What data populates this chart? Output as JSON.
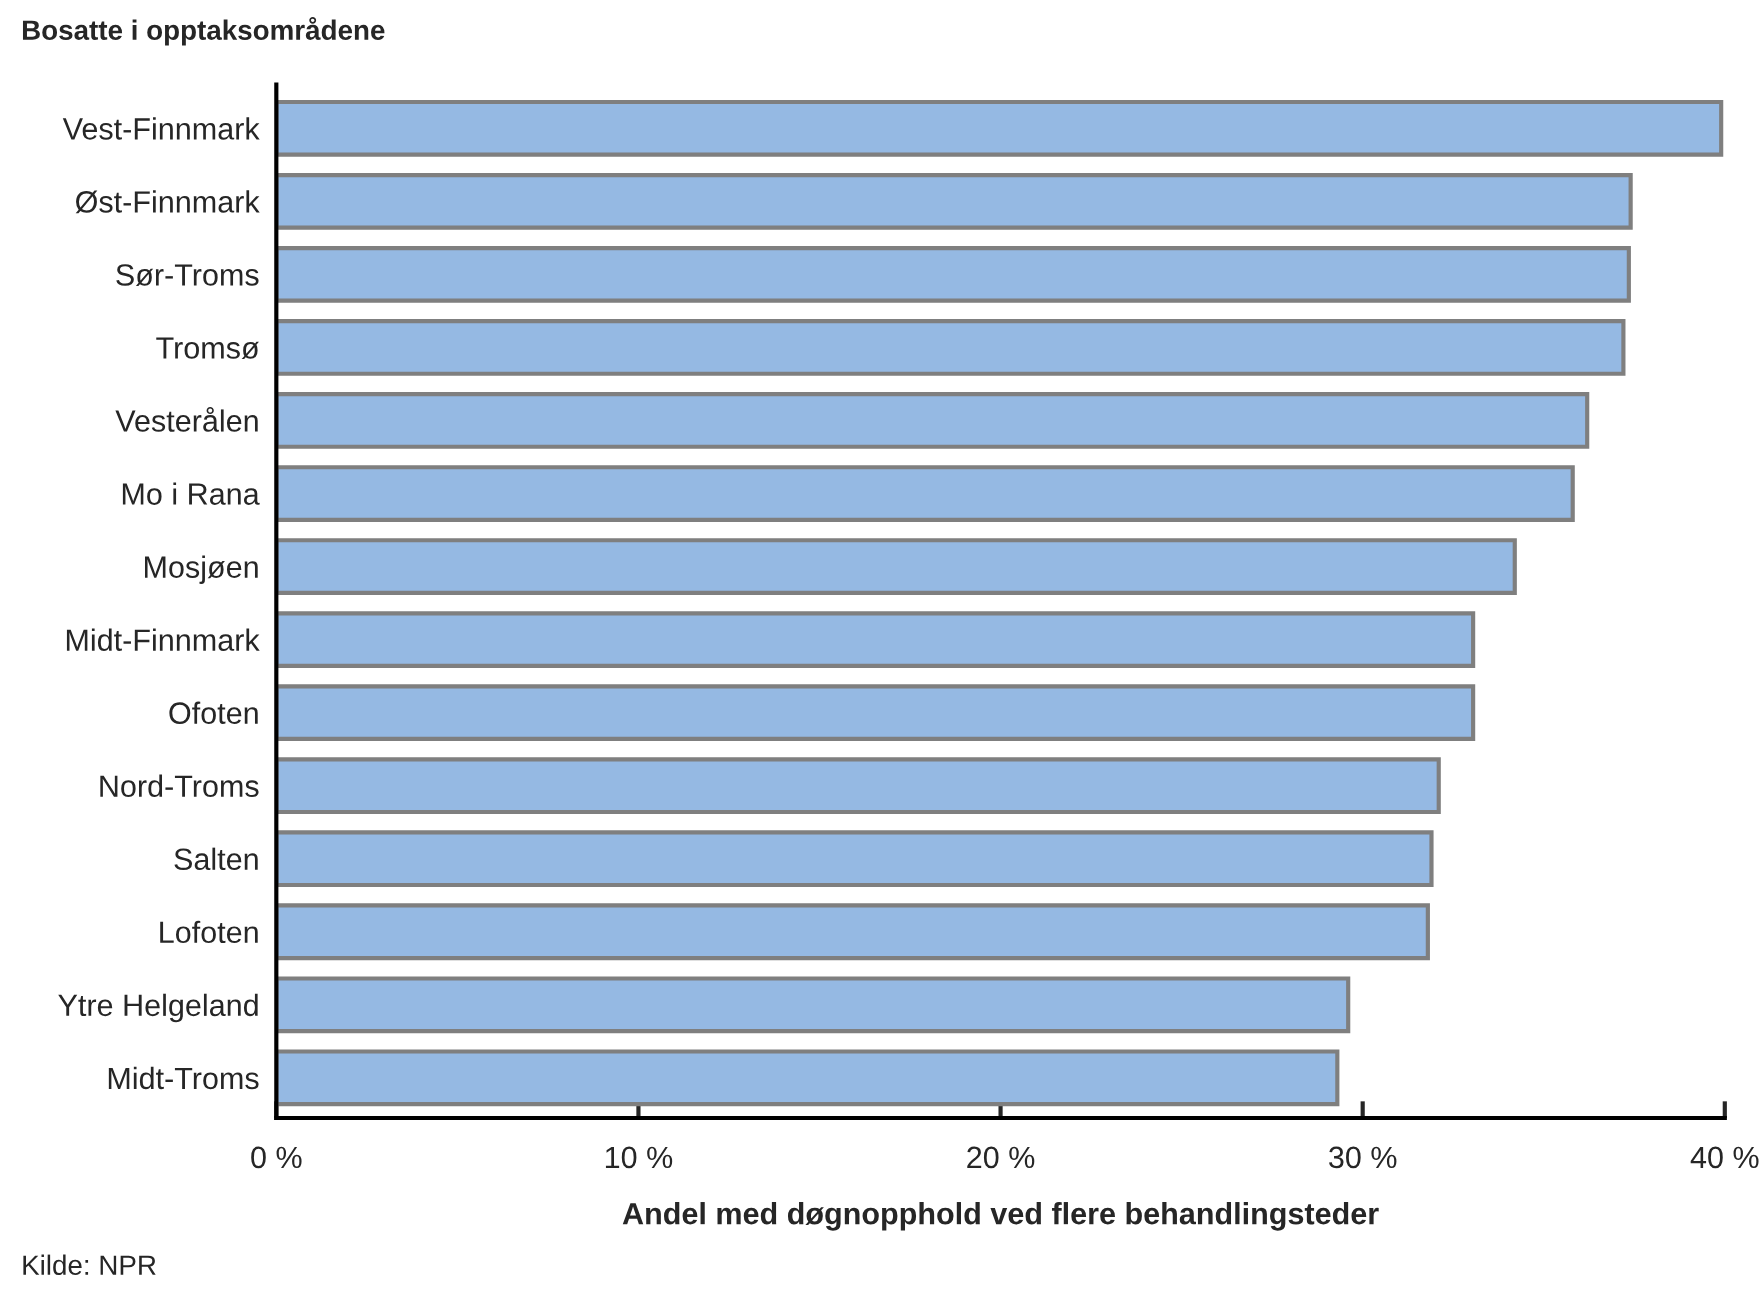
{
  "chart_data": {
    "type": "bar",
    "orientation": "horizontal",
    "ylabel": "Bosatte i opptaksområdene",
    "xlabel": "Andel med døgnopphold ved flere behandlingsteder",
    "categories": [
      "Vest-Finnmark",
      "Øst-Finnmark",
      "Sør-Troms",
      "Tromsø",
      "Vesterålen",
      "Mo i Rana",
      "Mosjøen",
      "Midt-Finnmark",
      "Ofoten",
      "Nord-Troms",
      "Salten",
      "Lofoten",
      "Ytre Helgeland",
      "Midt-Troms"
    ],
    "values": [
      39.9,
      37.4,
      37.35,
      37.2,
      36.2,
      35.8,
      34.2,
      33.05,
      33.05,
      32.1,
      31.9,
      31.8,
      29.6,
      29.3
    ],
    "color": "#95b9e3",
    "xlim": [
      0,
      40
    ],
    "xticks": [
      {
        "value": 0,
        "label": "0 %"
      },
      {
        "value": 10,
        "label": "10 %"
      },
      {
        "value": 20,
        "label": "20 %"
      },
      {
        "value": 30,
        "label": "30 %"
      },
      {
        "value": 40,
        "label": "40 %"
      }
    ],
    "grid": false,
    "annotations": [
      "Kilde: NPR"
    ]
  }
}
